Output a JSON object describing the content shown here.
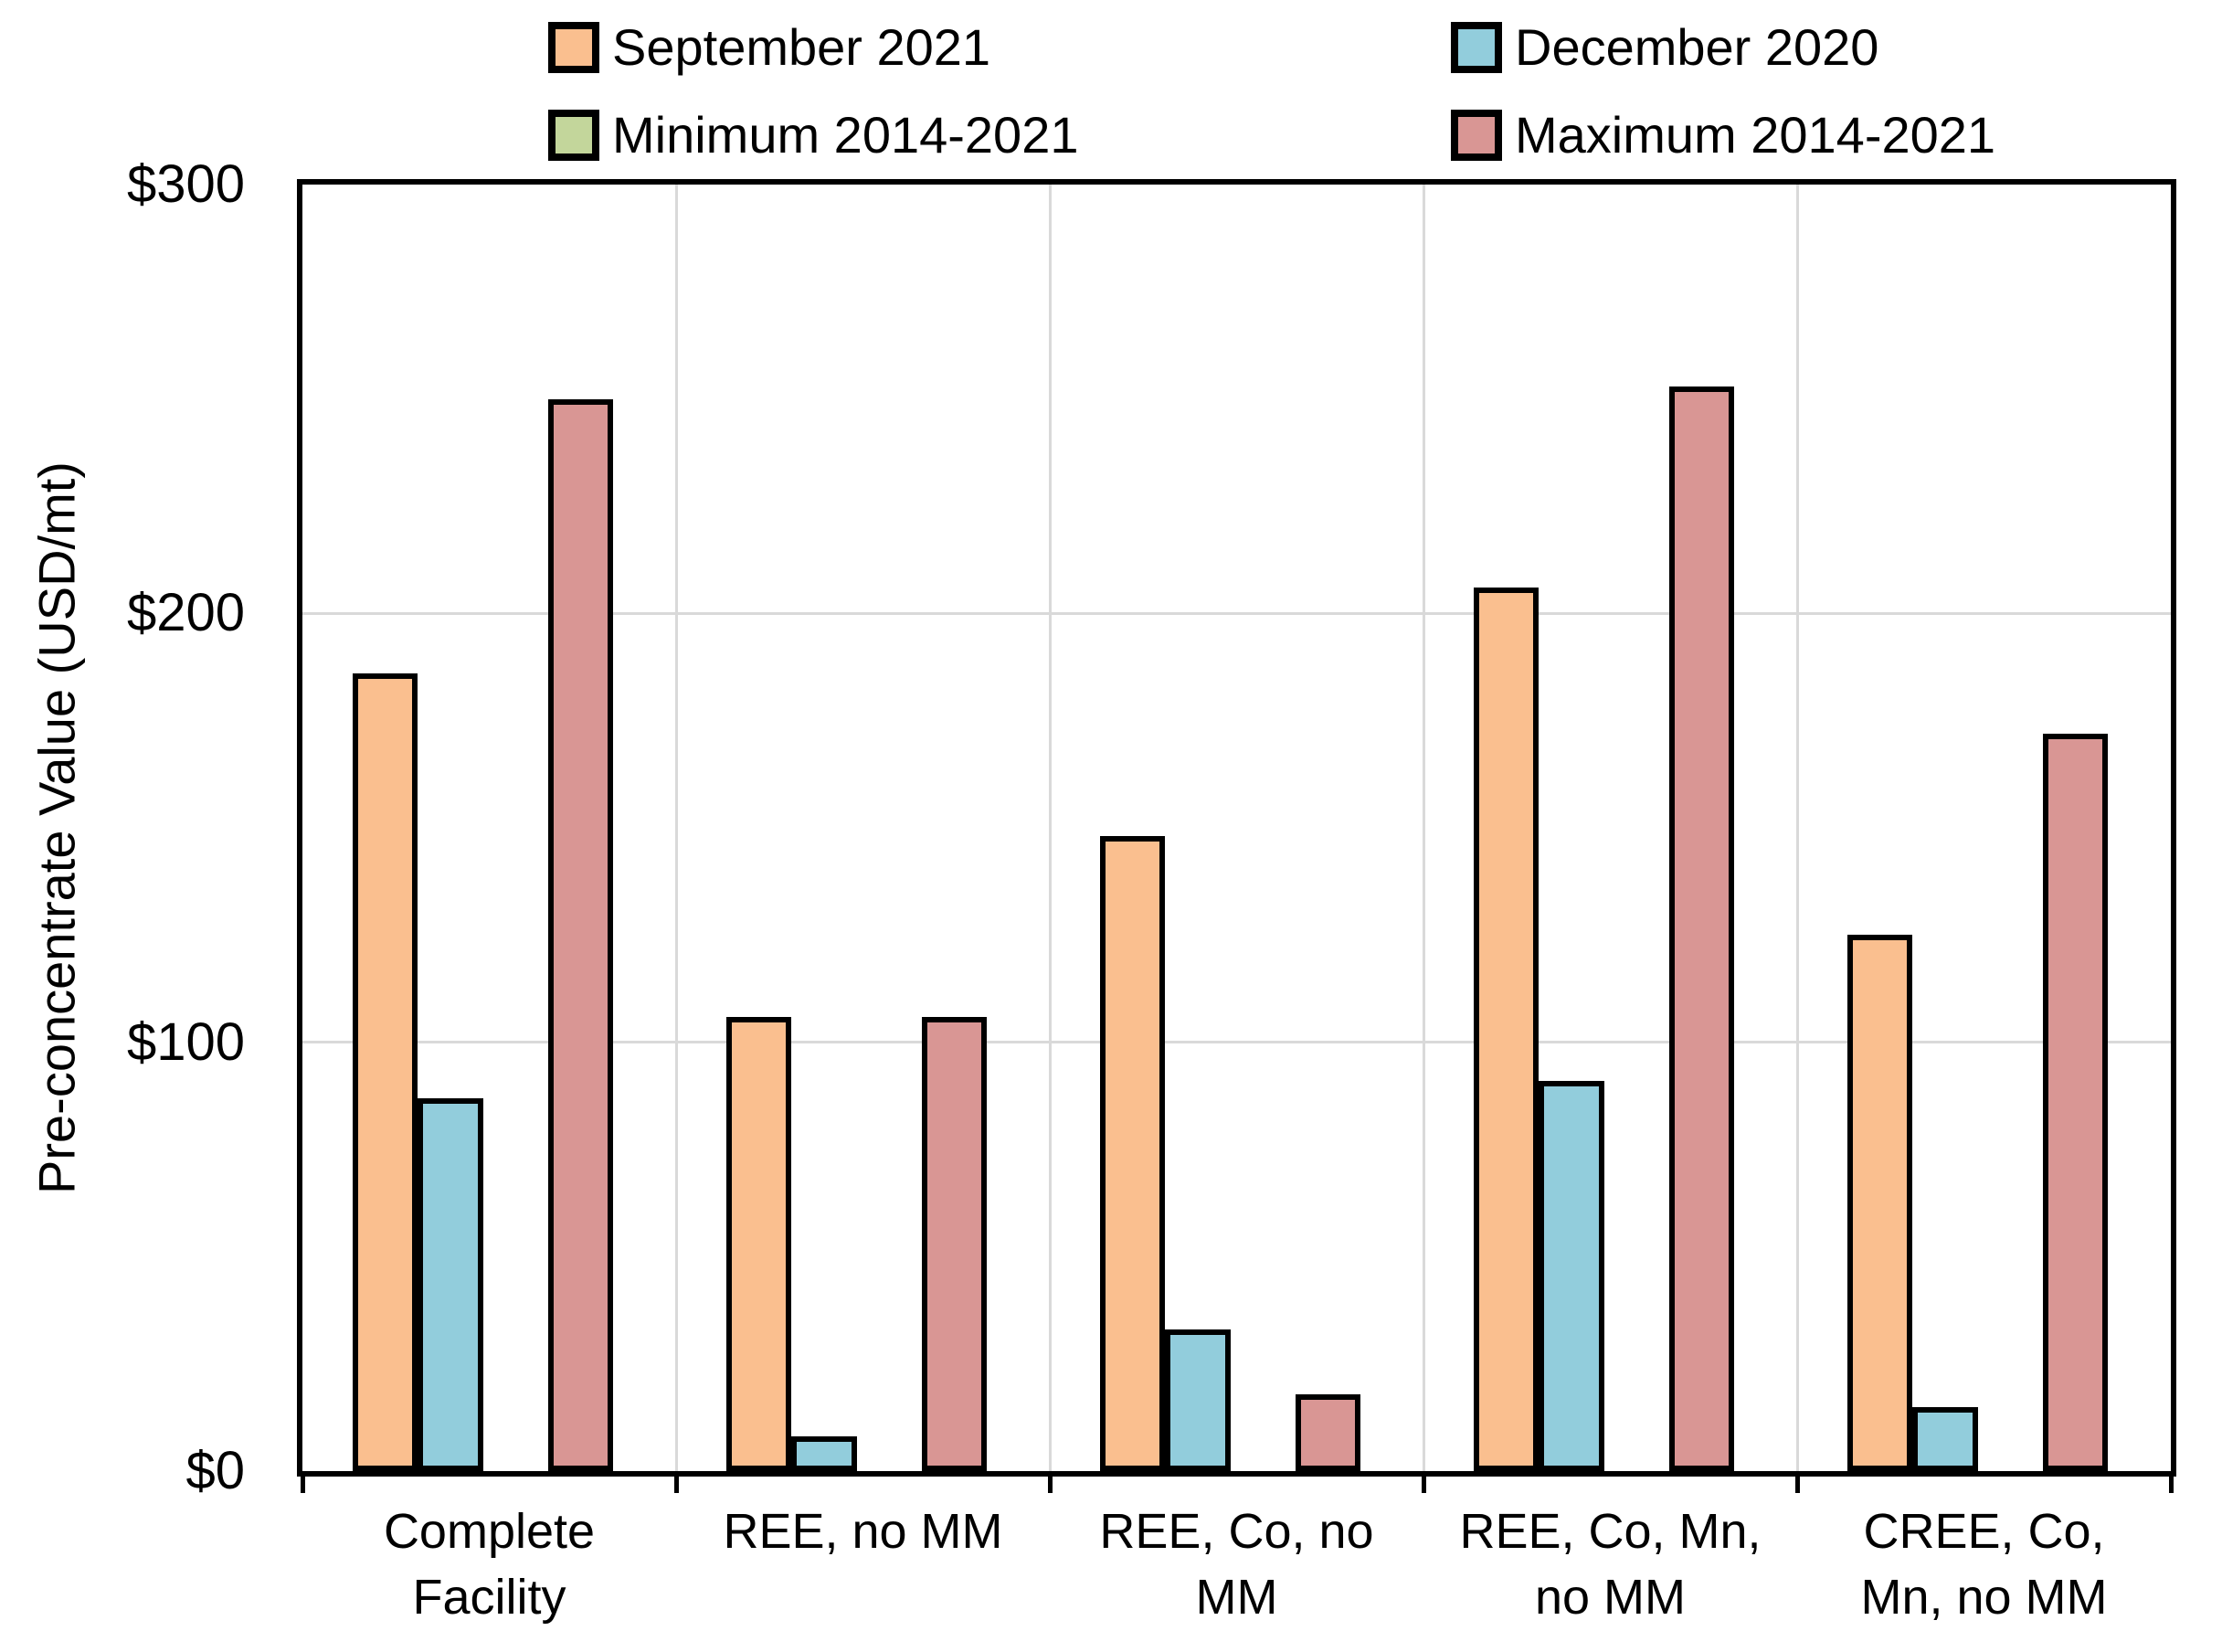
{
  "legend": {
    "items": [
      {
        "label": "September 2021",
        "color": "#FABF8F"
      },
      {
        "label": "December 2020",
        "color": "#92CDDC"
      },
      {
        "label": "Minimum 2014-2021",
        "color": "#C3D69B"
      },
      {
        "label": "Maximum 2014-2021",
        "color": "#D99694"
      }
    ]
  },
  "chart_data": {
    "type": "bar",
    "title": "",
    "xlabel": "",
    "ylabel": "Pre-concentrate Value (USD/mt)",
    "ylim": [
      0,
      300
    ],
    "y_ticks": [
      {
        "value": 0,
        "label": "$0"
      },
      {
        "value": 100,
        "label": "$100"
      },
      {
        "value": 200,
        "label": "$200"
      },
      {
        "value": 300,
        "label": "$300"
      }
    ],
    "grid": "light gray horizontal gridlines at $100 steps and vertical gridlines between category groups",
    "legend_position": "top, two columns, two rows",
    "categories": [
      "Complete\nFacility",
      "REE, no MM",
      "REE, Co, no\nMM",
      "REE, Co, Mn,\nno MM",
      "CREE, Co,\nMn, no MM"
    ],
    "series": [
      {
        "name": "September 2021",
        "color": "#FABF8F",
        "values": [
          186,
          106,
          148,
          206,
          125
        ]
      },
      {
        "name": "December 2020",
        "color": "#92CDDC",
        "values": [
          87,
          8,
          33,
          91,
          15
        ]
      },
      {
        "name": "Minimum 2014-2021",
        "color": "#C3D69B",
        "values": [
          0,
          0,
          0,
          0,
          0
        ]
      },
      {
        "name": "Maximum 2014-2021",
        "color": "#D99694",
        "values": [
          250,
          106,
          18,
          253,
          172
        ]
      }
    ],
    "bar_border_color": "#000000",
    "axis_color": "#000000",
    "gridline_color": "#D9D9D9"
  }
}
